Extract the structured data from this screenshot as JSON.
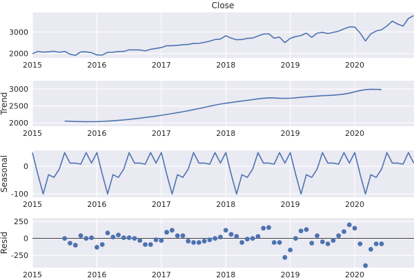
{
  "figure": {
    "title": "Close",
    "color": "#4c72b0"
  },
  "chart_data": [
    {
      "type": "line",
      "ylabel": "",
      "xlim": [
        2015.0,
        2020.92
      ],
      "ylim": [
        1800,
        3900
      ],
      "yticks": [
        2000,
        3000
      ],
      "xticks": [
        "2015",
        "2016",
        "2017",
        "2018",
        "2019",
        "2020"
      ],
      "series": [
        {
          "x": [
            "2015-01",
            "2015-02",
            "2015-03",
            "2015-04",
            "2015-05",
            "2015-06",
            "2015-07",
            "2015-08",
            "2015-09",
            "2015-10",
            "2015-11",
            "2015-12",
            "2016-01",
            "2016-02",
            "2016-03",
            "2016-04",
            "2016-05",
            "2016-06",
            "2016-07",
            "2016-08",
            "2016-09",
            "2016-10",
            "2016-11",
            "2016-12",
            "2017-01",
            "2017-02",
            "2017-03",
            "2017-04",
            "2017-05",
            "2017-06",
            "2017-07",
            "2017-08",
            "2017-09",
            "2017-10",
            "2017-11",
            "2017-12",
            "2018-01",
            "2018-02",
            "2018-03",
            "2018-04",
            "2018-05",
            "2018-06",
            "2018-07",
            "2018-08",
            "2018-09",
            "2018-10",
            "2018-11",
            "2018-12",
            "2019-01",
            "2019-02",
            "2019-03",
            "2019-04",
            "2019-05",
            "2019-06",
            "2019-07",
            "2019-08",
            "2019-09",
            "2019-10",
            "2019-11",
            "2019-12",
            "2020-01",
            "2020-02",
            "2020-03",
            "2020-04",
            "2020-05",
            "2020-06",
            "2020-07",
            "2020-08",
            "2020-09",
            "2020-10",
            "2020-11",
            "2020-12"
          ],
          "values": [
            1994,
            2104,
            2067,
            2085,
            2107,
            2063,
            2103,
            1973,
            1920,
            2079,
            2080,
            2044,
            1940,
            1932,
            2060,
            2065,
            2097,
            2099,
            2174,
            2171,
            2168,
            2126,
            2199,
            2239,
            2279,
            2364,
            2362,
            2384,
            2412,
            2423,
            2470,
            2472,
            2519,
            2575,
            2648,
            2674,
            2824,
            2714,
            2640,
            2648,
            2705,
            2718,
            2816,
            2902,
            2914,
            2711,
            2760,
            2507,
            2704,
            2784,
            2834,
            2946,
            2752,
            2942,
            2980,
            2926,
            2977,
            3037,
            3141,
            3231,
            3225,
            2954,
            2585,
            2912,
            3044,
            3100,
            3271,
            3500,
            3363,
            3270,
            3622,
            3756
          ]
        }
      ]
    },
    {
      "type": "line",
      "ylabel": "Trend",
      "xlim": [
        2015.0,
        2020.92
      ],
      "ylim": [
        1900,
        3250
      ],
      "yticks": [
        2000,
        2500,
        3000
      ],
      "xticks": [
        "2015",
        "2016",
        "2017",
        "2018",
        "2019",
        "2020"
      ],
      "series": [
        {
          "x": [
            "2015-07",
            "2015-08",
            "2015-09",
            "2015-10",
            "2015-11",
            "2015-12",
            "2016-01",
            "2016-02",
            "2016-03",
            "2016-04",
            "2016-05",
            "2016-06",
            "2016-07",
            "2016-08",
            "2016-09",
            "2016-10",
            "2016-11",
            "2016-12",
            "2017-01",
            "2017-02",
            "2017-03",
            "2017-04",
            "2017-05",
            "2017-06",
            "2017-07",
            "2017-08",
            "2017-09",
            "2017-10",
            "2017-11",
            "2017-12",
            "2018-01",
            "2018-02",
            "2018-03",
            "2018-04",
            "2018-05",
            "2018-06",
            "2018-07",
            "2018-08",
            "2018-09",
            "2018-10",
            "2018-11",
            "2018-12",
            "2019-01",
            "2019-02",
            "2019-03",
            "2019-04",
            "2019-05",
            "2019-06",
            "2019-07",
            "2019-08",
            "2019-09",
            "2019-10",
            "2019-11",
            "2019-12",
            "2020-01",
            "2020-02",
            "2020-03",
            "2020-04",
            "2020-05",
            "2020-06"
          ],
          "values": [
            2053,
            2047,
            2040,
            2036,
            2035,
            2035,
            2037,
            2043,
            2052,
            2063,
            2075,
            2088,
            2103,
            2121,
            2140,
            2160,
            2180,
            2201,
            2225,
            2250,
            2276,
            2303,
            2330,
            2360,
            2392,
            2424,
            2459,
            2493,
            2527,
            2557,
            2582,
            2605,
            2628,
            2648,
            2667,
            2688,
            2711,
            2729,
            2743,
            2739,
            2730,
            2727,
            2731,
            2743,
            2757,
            2770,
            2783,
            2793,
            2806,
            2812,
            2822,
            2835,
            2855,
            2880,
            2922,
            2960,
            2985,
            2996,
            2992,
            2987
          ]
        }
      ]
    },
    {
      "type": "line",
      "ylabel": "Seasonal",
      "xlim": [
        2015.0,
        2020.92
      ],
      "ylim": [
        -112,
        58
      ],
      "yticks": [
        -100,
        0
      ],
      "xticks": [
        "2015",
        "2016",
        "2017",
        "2018",
        "2019",
        "2020"
      ],
      "series": [
        {
          "x": [
            "2015-01",
            "2015-02",
            "2015-03",
            "2015-04",
            "2015-05",
            "2015-06",
            "2015-07",
            "2015-08",
            "2015-09",
            "2015-10",
            "2015-11",
            "2015-12",
            "2016-01",
            "2016-02",
            "2016-03",
            "2016-04",
            "2016-05",
            "2016-06",
            "2016-07",
            "2016-08",
            "2016-09",
            "2016-10",
            "2016-11",
            "2016-12",
            "2017-01",
            "2017-02",
            "2017-03",
            "2017-04",
            "2017-05",
            "2017-06",
            "2017-07",
            "2017-08",
            "2017-09",
            "2017-10",
            "2017-11",
            "2017-12",
            "2018-01",
            "2018-02",
            "2018-03",
            "2018-04",
            "2018-05",
            "2018-06",
            "2018-07",
            "2018-08",
            "2018-09",
            "2018-10",
            "2018-11",
            "2018-12",
            "2019-01",
            "2019-02",
            "2019-03",
            "2019-04",
            "2019-05",
            "2019-06",
            "2019-07",
            "2019-08",
            "2019-09",
            "2019-10",
            "2019-11",
            "2019-12",
            "2020-01",
            "2020-02",
            "2020-03",
            "2020-04",
            "2020-05",
            "2020-06",
            "2020-07",
            "2020-08",
            "2020-09",
            "2020-10",
            "2020-11",
            "2020-12"
          ],
          "values": [
            50,
            -28,
            -100,
            -30,
            -40,
            -10,
            50,
            12,
            12,
            8,
            50,
            12,
            50,
            -28,
            -100,
            -30,
            -40,
            -10,
            50,
            12,
            12,
            8,
            50,
            12,
            50,
            -28,
            -100,
            -30,
            -40,
            -10,
            50,
            12,
            12,
            8,
            50,
            12,
            50,
            -28,
            -100,
            -30,
            -40,
            -10,
            50,
            12,
            12,
            8,
            50,
            12,
            50,
            -28,
            -100,
            -30,
            -40,
            -10,
            50,
            12,
            12,
            8,
            50,
            12,
            50,
            -28,
            -100,
            -30,
            -40,
            -10,
            50,
            12,
            12,
            8,
            50,
            12
          ]
        }
      ]
    },
    {
      "type": "scatter",
      "ylabel": "Resid",
      "xlim": [
        2015.0,
        2020.92
      ],
      "ylim": [
        -430,
        300
      ],
      "yticks": [
        -250,
        0,
        250
      ],
      "xticks": [
        "2015",
        "2016",
        "2017",
        "2018",
        "2019",
        "2020"
      ],
      "zero_line": true,
      "series": [
        {
          "x": [
            "2015-07",
            "2015-08",
            "2015-09",
            "2015-10",
            "2015-11",
            "2015-12",
            "2016-01",
            "2016-02",
            "2016-03",
            "2016-04",
            "2016-05",
            "2016-06",
            "2016-07",
            "2016-08",
            "2016-09",
            "2016-10",
            "2016-11",
            "2016-12",
            "2017-01",
            "2017-02",
            "2017-03",
            "2017-04",
            "2017-05",
            "2017-06",
            "2017-07",
            "2017-08",
            "2017-09",
            "2017-10",
            "2017-11",
            "2017-12",
            "2018-01",
            "2018-02",
            "2018-03",
            "2018-04",
            "2018-05",
            "2018-06",
            "2018-07",
            "2018-08",
            "2018-09",
            "2018-10",
            "2018-11",
            "2018-12",
            "2019-01",
            "2019-02",
            "2019-03",
            "2019-04",
            "2019-05",
            "2019-06",
            "2019-07",
            "2019-08",
            "2019-09",
            "2019-10",
            "2019-11",
            "2019-12",
            "2020-01",
            "2020-02",
            "2020-03",
            "2020-04",
            "2020-05",
            "2020-06"
          ],
          "values": [
            0,
            -70,
            -100,
            40,
            0,
            10,
            -130,
            -90,
            80,
            20,
            50,
            10,
            10,
            0,
            -30,
            -90,
            -90,
            -20,
            -30,
            90,
            120,
            40,
            40,
            -40,
            -60,
            -60,
            -40,
            -20,
            0,
            20,
            120,
            60,
            30,
            -60,
            -10,
            0,
            30,
            150,
            160,
            -60,
            -60,
            -280,
            -170,
            0,
            110,
            130,
            -70,
            40,
            -50,
            -80,
            -30,
            40,
            100,
            200,
            150,
            -80,
            -400,
            -160,
            -80,
            -80
          ]
        }
      ]
    }
  ]
}
